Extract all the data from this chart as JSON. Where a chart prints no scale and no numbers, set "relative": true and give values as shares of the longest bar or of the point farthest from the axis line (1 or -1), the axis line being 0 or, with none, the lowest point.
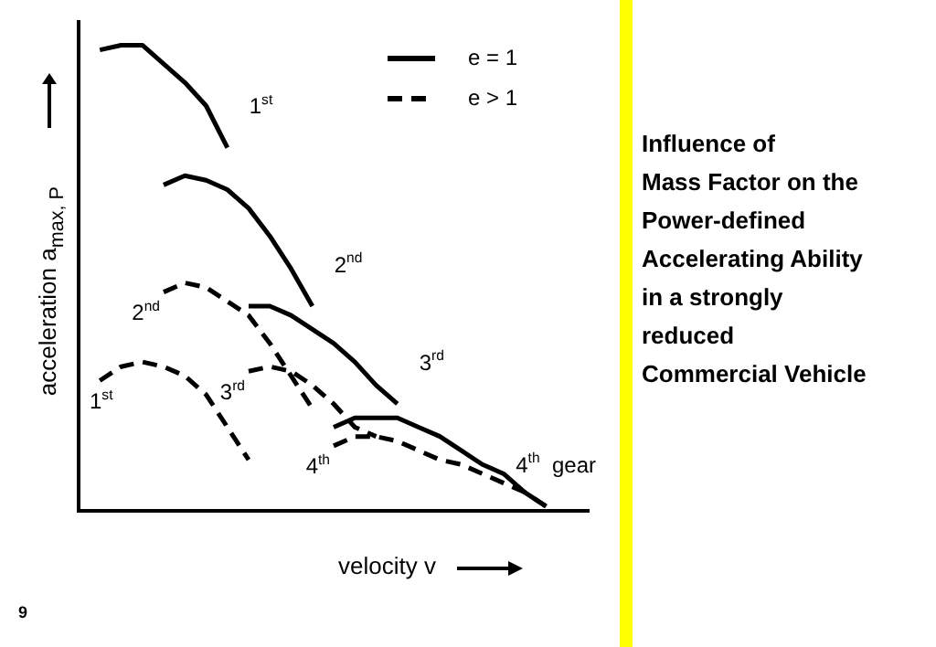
{
  "chart_data": {
    "type": "line",
    "relative": true,
    "title": "Influence of\nMass Factor on the\nPower-defined\nAccelerating Ability\nin a strongly\nreduced\nCommercial Vehicle",
    "xlabel": "velocity  v",
    "ylabel": "acceleration  a$_{max, P}$",
    "legend": "top right",
    "marker": "none",
    "categories": [
      null,
      null,
      null,
      null,
      null,
      null,
      null,
      null,
      null,
      null,
      null,
      null,
      null,
      null,
      null,
      null,
      null,
      null,
      null,
      null,
      null,
      null,
      null,
      null,
      null
    ],
    "series": [
      {
        "name": "e = 1",
        "color": "#000000",
        "line_style": "solid",
        "values": [
          null,
          0.99,
          1.0,
          1.0,
          0.96,
          0.92,
          0.87,
          0.78,
          null,
          null,
          null,
          null,
          null,
          null,
          null,
          null,
          null,
          null,
          null,
          null,
          null,
          null,
          null,
          null,
          null
        ]
      },
      {
        "color": "#000000",
        "line_style": "solid",
        "values": [
          null,
          null,
          null,
          null,
          0.7,
          0.72,
          0.71,
          0.69,
          0.65,
          0.59,
          0.52,
          0.44,
          null,
          null,
          null,
          null,
          null,
          null,
          null,
          null,
          null,
          null,
          null,
          null,
          null
        ]
      },
      {
        "color": "#000000",
        "line_style": "solid",
        "values": [
          null,
          null,
          null,
          null,
          null,
          null,
          null,
          null,
          0.44,
          0.44,
          0.42,
          0.39,
          0.36,
          0.32,
          0.27,
          0.23,
          null,
          null,
          null,
          null,
          null,
          null,
          null,
          null,
          null
        ]
      },
      {
        "color": "#000000",
        "line_style": "solid",
        "values": [
          null,
          null,
          null,
          null,
          null,
          null,
          null,
          null,
          null,
          null,
          null,
          null,
          0.18,
          0.2,
          0.2,
          0.2,
          0.18,
          0.16,
          0.13,
          0.1,
          0.08,
          0.04,
          0.01,
          null,
          null
        ]
      },
      {
        "name": "e > 1",
        "color": "#000000",
        "line_style": "dashed",
        "values": [
          null,
          0.28,
          0.31,
          0.32,
          0.31,
          0.29,
          0.25,
          0.18,
          0.11,
          null,
          null,
          null,
          null,
          null,
          null,
          null,
          null,
          null,
          null,
          null,
          null,
          null,
          null,
          null,
          null
        ]
      },
      {
        "color": "#000000",
        "line_style": "dashed",
        "values": [
          null,
          null,
          null,
          null,
          0.47,
          0.49,
          0.48,
          0.45,
          0.42,
          0.36,
          0.29,
          0.22,
          null,
          null,
          null,
          null,
          null,
          null,
          null,
          null,
          null,
          null,
          null,
          null,
          null
        ]
      },
      {
        "color": "#000000",
        "line_style": "dashed",
        "values": [
          null,
          null,
          null,
          null,
          null,
          null,
          null,
          null,
          0.3,
          0.31,
          0.3,
          0.27,
          0.23,
          0.18,
          0.16,
          null,
          null,
          null,
          null,
          null,
          null,
          null,
          null,
          null,
          null
        ]
      },
      {
        "color": "#000000",
        "line_style": "dashed",
        "values": [
          null,
          null,
          null,
          null,
          null,
          null,
          null,
          null,
          null,
          null,
          null,
          null,
          0.14,
          0.16,
          0.16,
          0.15,
          0.13,
          0.11,
          0.1,
          0.08,
          0.06,
          0.04,
          0.01,
          null,
          null
        ]
      }
    ],
    "annotations": [
      "1$^{st}$",
      "2$^{nd}$",
      "3$^{rd}$",
      "4$^{th}$  gear",
      "1$^{st}$",
      "2$^{nd}$",
      "3$^{rd}$",
      "4$^{th}$",
      "9"
    ]
  }
}
